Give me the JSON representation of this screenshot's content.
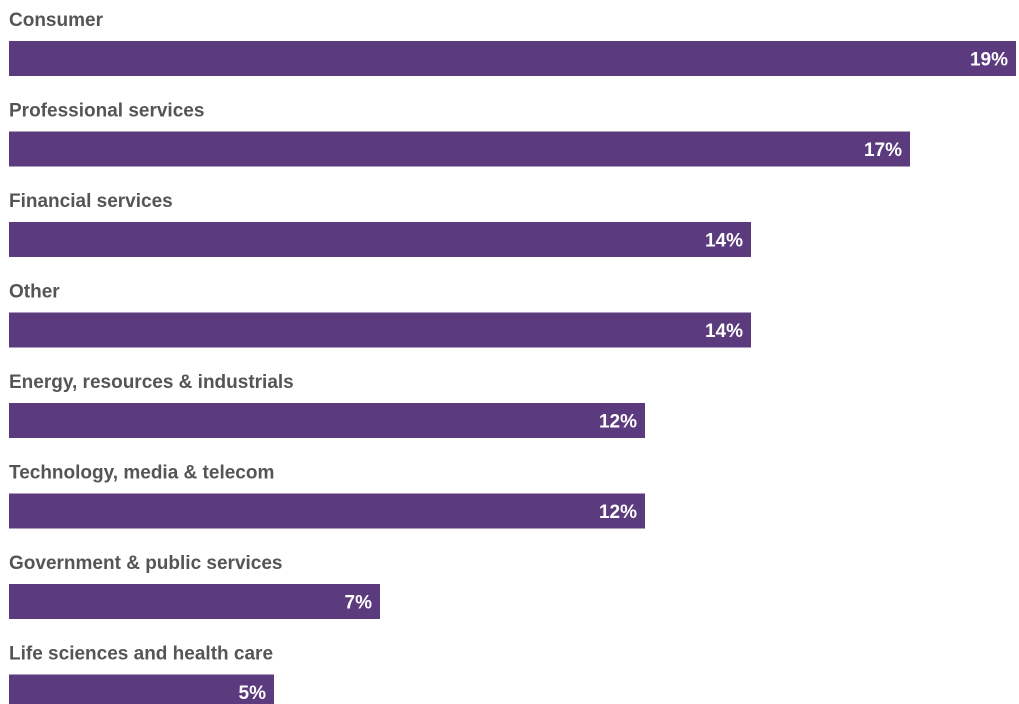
{
  "chart_data": {
    "type": "bar",
    "orientation": "horizontal",
    "categories": [
      "Consumer",
      "Professional services",
      "Financial services",
      "Other",
      "Energy, resources & industrials",
      "Technology, media & telecom",
      "Government & public services",
      "Life sciences and health care"
    ],
    "values": [
      19,
      17,
      14,
      14,
      12,
      12,
      7,
      5
    ],
    "value_labels": [
      "19%",
      "17%",
      "14%",
      "14%",
      "12%",
      "12%",
      "7%",
      "5%"
    ],
    "unit": "%",
    "xlim": [
      0,
      19
    ],
    "grid": false,
    "bar_color": "#5b3a7e",
    "label_color": "#555555",
    "value_label_color": "#ffffff"
  }
}
